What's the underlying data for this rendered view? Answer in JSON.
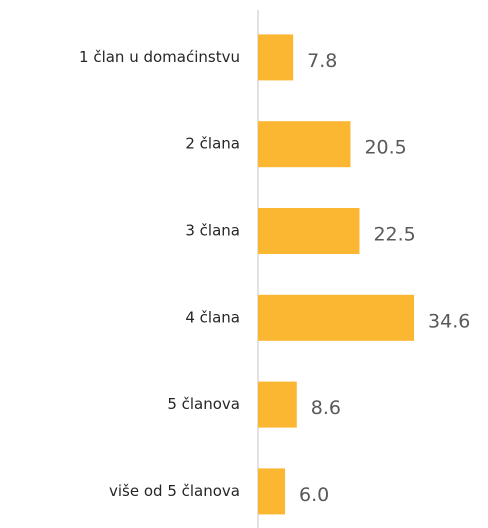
{
  "chart_data": {
    "type": "bar",
    "orientation": "horizontal",
    "categories": [
      "1 član u domaćinstvu",
      "2 člana",
      "3 člana",
      "4 člana",
      "5 članova",
      "više od 5 članova"
    ],
    "values": [
      7.8,
      20.5,
      22.5,
      34.6,
      8.6,
      6
    ],
    "value_labels": [
      "7.8",
      "20.5",
      "22.5",
      "34.6",
      "8.6",
      "6.0"
    ],
    "color": "#fbb632"
  }
}
